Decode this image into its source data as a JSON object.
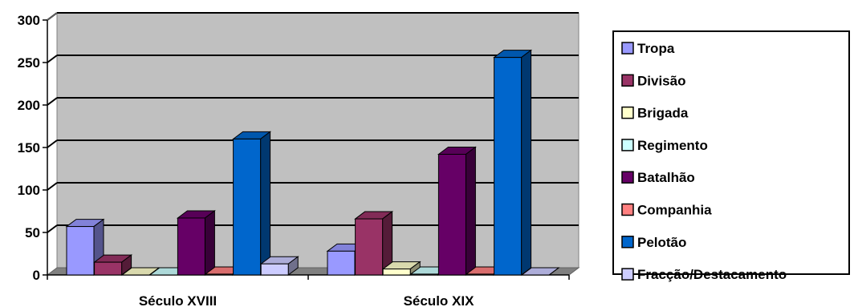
{
  "chart_data": {
    "type": "bar",
    "style": "3d-clustered-column",
    "title": "",
    "xlabel": "",
    "ylabel": "",
    "ylim": [
      0,
      300
    ],
    "yticks": [
      0,
      50,
      100,
      150,
      200,
      250,
      300
    ],
    "grid": true,
    "legend_position": "right",
    "categories": [
      "Século XVIII",
      "Século XIX"
    ],
    "series": [
      {
        "name": "Tropa",
        "color": "#9999ff",
        "values": [
          57,
          28
        ]
      },
      {
        "name": "Divisão",
        "color": "#993366",
        "values": [
          15,
          66
        ]
      },
      {
        "name": "Brigada",
        "color": "#ffffcc",
        "values": [
          0,
          7
        ]
      },
      {
        "name": "Regimento",
        "color": "#ccffff",
        "values": [
          0,
          1
        ]
      },
      {
        "name": "Batalhão",
        "color": "#660066",
        "values": [
          67,
          142
        ]
      },
      {
        "name": "Companhia",
        "color": "#ff8080",
        "values": [
          1,
          1
        ]
      },
      {
        "name": "Pelotão",
        "color": "#0066cc",
        "values": [
          160,
          256
        ]
      },
      {
        "name": "Fracção/Destacamento",
        "color": "#ccccff",
        "values": [
          13,
          0
        ]
      }
    ]
  },
  "colors": {
    "plot_wall": "#c0c0c0",
    "floor": "#808080",
    "grid": "#000000"
  }
}
